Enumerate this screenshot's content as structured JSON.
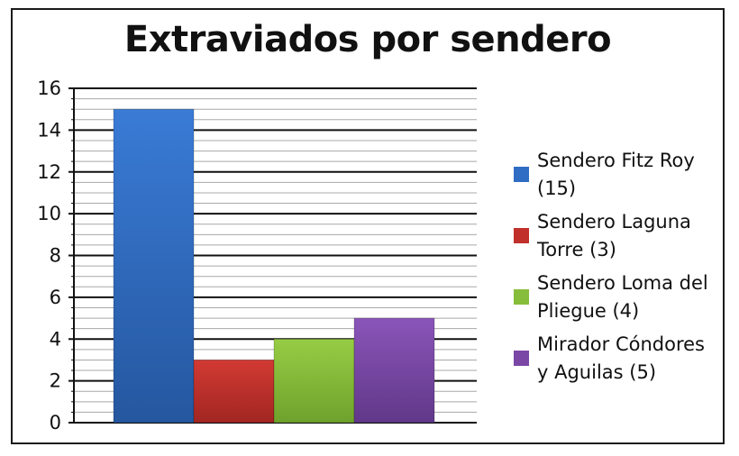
{
  "chart_data": {
    "type": "bar",
    "title": "Extraviados por sendero",
    "xlabel": "",
    "ylabel": "",
    "ylim": [
      0,
      16
    ],
    "yticks": [
      0,
      2,
      4,
      6,
      8,
      10,
      12,
      14,
      16
    ],
    "minor_tick_step": 0.5,
    "grid": true,
    "legend_position": "right",
    "categories": [
      "Sendero Fitz Roy (15)",
      "Sendero Laguna Torre (3)",
      "Sendero Loma del Pliegue (4)",
      "Mirador Cóndores y Aguilas (5)"
    ],
    "values": [
      15,
      3,
      4,
      5
    ],
    "colors": [
      "#2f6dc4",
      "#c1302b",
      "#86bd3a",
      "#7a47a6"
    ],
    "legend": [
      {
        "line1": "Sendero Fitz Roy",
        "line2": "(15)",
        "color": "#2f6dc4"
      },
      {
        "line1": "Sendero Laguna",
        "line2": "Torre (3)",
        "color": "#c1302b"
      },
      {
        "line1": "Sendero Loma del",
        "line2": "Pliegue (4)",
        "color": "#86bd3a"
      },
      {
        "line1": "Mirador Cóndores",
        "line2": "y Aguilas (5)",
        "color": "#7a47a6"
      }
    ]
  }
}
